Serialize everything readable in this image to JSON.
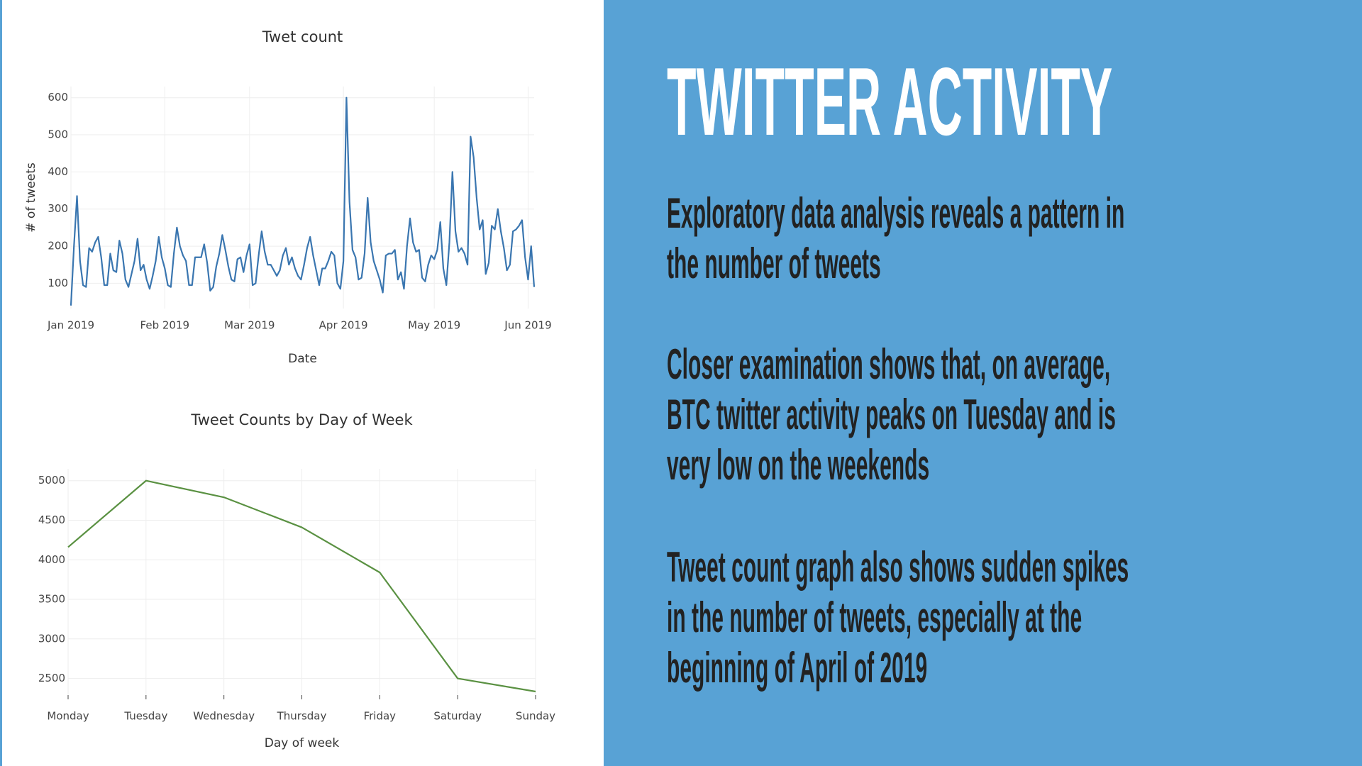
{
  "chart_data": [
    {
      "type": "line",
      "title": "Twet count",
      "x_label": "Date",
      "y_label": "# of tweets",
      "color": "#3a76b0",
      "values": [
        40,
        200,
        335,
        160,
        95,
        90,
        195,
        185,
        210,
        225,
        170,
        95,
        95,
        180,
        135,
        130,
        215,
        180,
        110,
        90,
        125,
        160,
        220,
        135,
        150,
        110,
        85,
        120,
        160,
        225,
        170,
        140,
        95,
        90,
        180,
        250,
        200,
        175,
        160,
        95,
        95,
        170,
        170,
        170,
        205,
        155,
        80,
        90,
        145,
        180,
        230,
        190,
        145,
        110,
        105,
        165,
        170,
        130,
        175,
        205,
        95,
        100,
        175,
        240,
        185,
        150,
        150,
        135,
        120,
        135,
        175,
        195,
        150,
        170,
        140,
        120,
        110,
        150,
        195,
        225,
        175,
        135,
        95,
        140,
        140,
        160,
        185,
        175,
        100,
        85,
        160,
        600,
        320,
        190,
        170,
        110,
        115,
        180,
        330,
        210,
        160,
        135,
        110,
        75,
        175,
        180,
        180,
        190,
        110,
        130,
        85,
        200,
        275,
        210,
        185,
        190,
        115,
        105,
        150,
        175,
        165,
        190,
        265,
        140,
        95,
        210,
        400,
        240,
        185,
        195,
        180,
        150,
        495,
        440,
        330,
        245,
        270,
        125,
        155,
        255,
        245,
        300,
        240,
        195,
        135,
        150,
        240,
        245,
        255,
        270,
        170,
        110,
        200,
        90
      ],
      "xlim": [
        0,
        153
      ],
      "xticks": [
        {
          "value": 0,
          "label": "Jan 2019"
        },
        {
          "value": 31,
          "label": "Feb 2019"
        },
        {
          "value": 59,
          "label": "Mar 2019"
        },
        {
          "value": 90,
          "label": "Apr 2019"
        },
        {
          "value": 120,
          "label": "May 2019"
        },
        {
          "value": 151,
          "label": "Jun 2019"
        }
      ],
      "ylim": [
        32,
        630
      ],
      "yticks": [
        100,
        200,
        300,
        400,
        500,
        600
      ],
      "grid": true
    },
    {
      "type": "line",
      "title": "Tweet Counts by Day of Week",
      "x_label": "Day of week",
      "color": "#5a9142",
      "categories": [
        "Monday",
        "Tuesday",
        "Wednesday",
        "Thursday",
        "Friday",
        "Saturday",
        "Sunday"
      ],
      "values": [
        4160,
        5000,
        4790,
        4410,
        3840,
        2500,
        2335
      ],
      "ylim": [
        2290,
        5150
      ],
      "yticks": [
        2500,
        3000,
        3500,
        4000,
        4500,
        5000
      ],
      "grid": true
    }
  ],
  "slide": {
    "title": "TWITTER ACTIVITY",
    "paragraphs": [
      [
        "Exploratory data analysis reveals a pattern in",
        "the number of tweets"
      ],
      [
        "Closer examination shows that, on average,",
        "BTC twitter activity peaks on Tuesday and is",
        "very low on the weekends"
      ],
      [
        "Tweet count graph also shows sudden spikes",
        "in the number of tweets, especially at the",
        "beginning of April of 2019"
      ]
    ]
  }
}
